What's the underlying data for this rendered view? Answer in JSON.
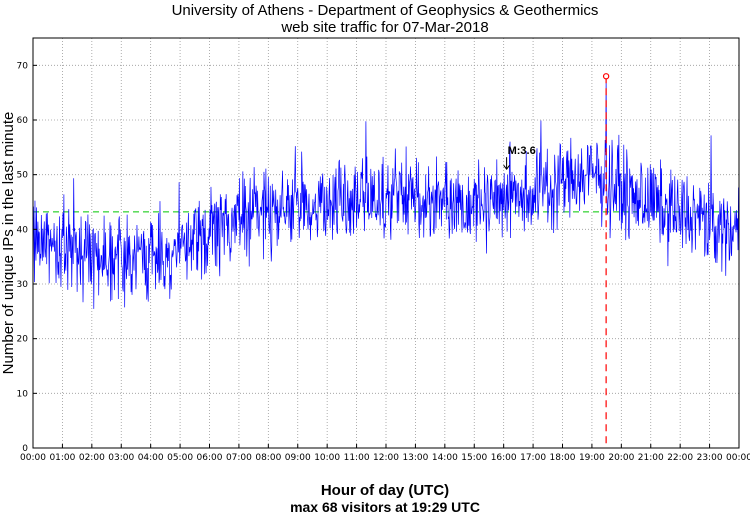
{
  "chart_data": {
    "type": "line",
    "title": "University of Athens - Department of Geophysics & Geothermics",
    "subtitle": "web site traffic for 07-Mar-2018",
    "xlabel": "Hour of day (UTC)",
    "ylabel": "Number of unique IPs in the last minute",
    "footer": "max 68 visitors at 19:29 UTC",
    "x_tick_labels": [
      "00:00",
      "01:00",
      "02:00",
      "03:00",
      "04:00",
      "05:00",
      "06:00",
      "07:00",
      "08:00",
      "09:00",
      "10:00",
      "11:00",
      "12:00",
      "13:00",
      "14:00",
      "15:00",
      "16:00",
      "17:00",
      "18:00",
      "19:00",
      "20:00",
      "21:00",
      "22:00",
      "23:00",
      "00:00"
    ],
    "y_ticks": [
      0,
      10,
      20,
      30,
      40,
      50,
      60,
      70
    ],
    "xlim": [
      0,
      24
    ],
    "ylim": [
      0,
      75
    ],
    "grid": true,
    "series": [
      {
        "color": "#0000ff",
        "hourly_profile": {
          "hours": [
            0,
            1,
            2,
            3,
            4,
            5,
            6,
            7,
            8,
            9,
            10,
            11,
            12,
            13,
            14,
            15,
            16,
            17,
            18,
            19,
            20,
            21,
            22,
            23,
            24
          ],
          "values": [
            38,
            37,
            36,
            35,
            35,
            36,
            39,
            42,
            44,
            44,
            45,
            45,
            46,
            46,
            45,
            45,
            46,
            47,
            49,
            50,
            47,
            45,
            43,
            41,
            39
          ]
        }
      }
    ],
    "mean_line": {
      "value": 43.2,
      "color": "#00c800"
    },
    "max_marker": {
      "time": "19:29",
      "hour": 19.483,
      "value": 68,
      "color": "#ff0000"
    },
    "earthquake_marker": {
      "label": "M:3.6",
      "hour": 16.1,
      "value": 51
    }
  }
}
